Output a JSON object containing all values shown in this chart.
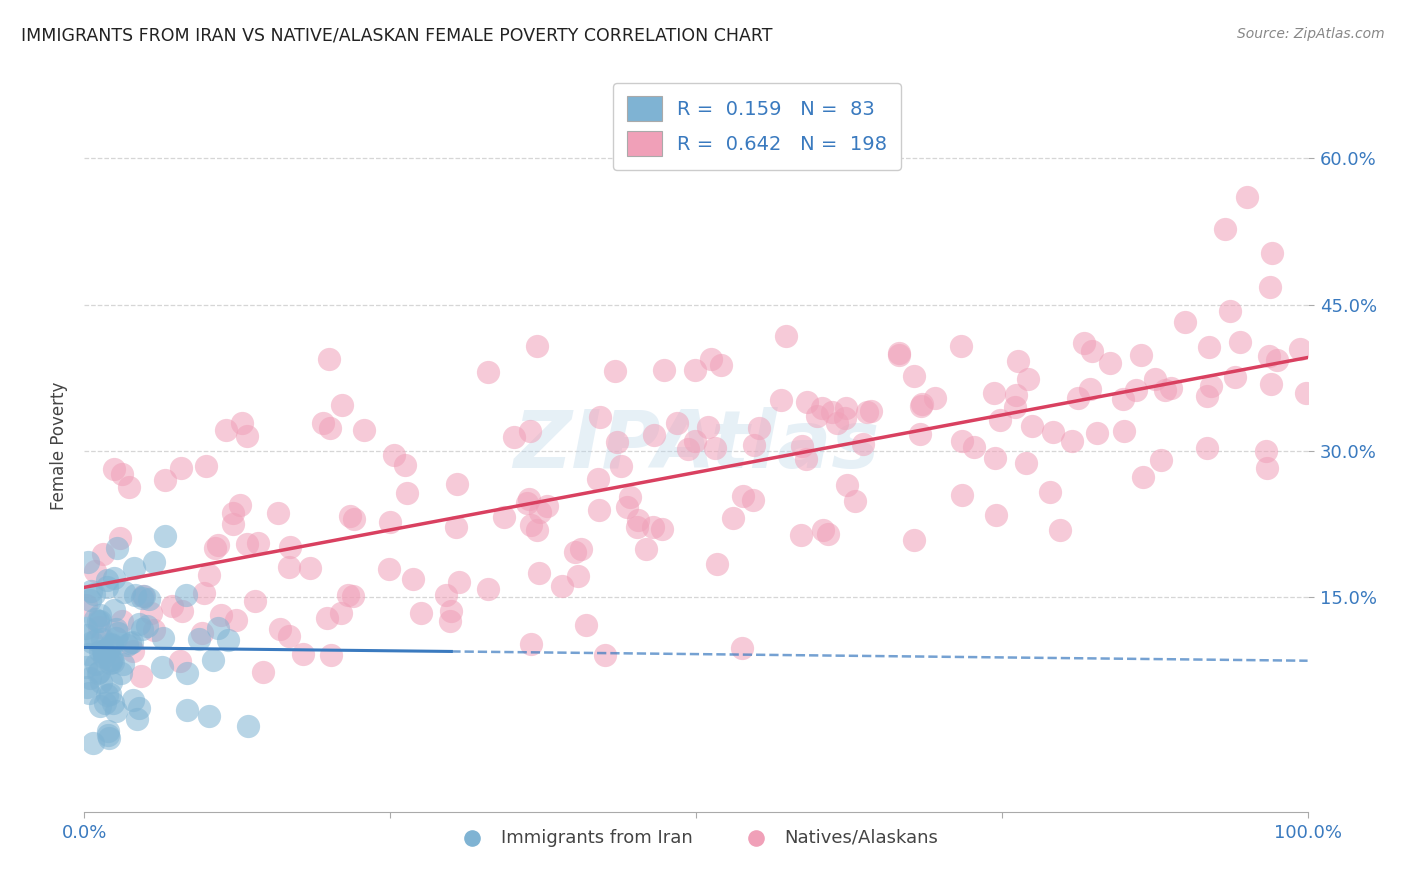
{
  "title": "IMMIGRANTS FROM IRAN VS NATIVE/ALASKAN FEMALE POVERTY CORRELATION CHART",
  "source": "Source: ZipAtlas.com",
  "ylabel": "Female Poverty",
  "yticks": [
    "15.0%",
    "30.0%",
    "45.0%",
    "60.0%"
  ],
  "ytick_vals": [
    0.15,
    0.3,
    0.45,
    0.6
  ],
  "legend1_label": "Immigrants from Iran",
  "legend2_label": "Natives/Alaskans",
  "r1": 0.159,
  "n1": 83,
  "r2": 0.642,
  "n2": 198,
  "color1": "#7fb3d3",
  "color2": "#f0a0b8",
  "line1_color": "#3a7abf",
  "line2_color": "#d94060",
  "watermark_color": "#b8d4e8",
  "background_color": "#ffffff",
  "grid_color": "#cccccc",
  "title_color": "#222222",
  "source_color": "#888888",
  "axis_label_color": "#3a7abf",
  "legend_text_color": "#3a7abf",
  "xlim": [
    0.0,
    1.0
  ],
  "ylim": [
    -0.07,
    0.68
  ]
}
